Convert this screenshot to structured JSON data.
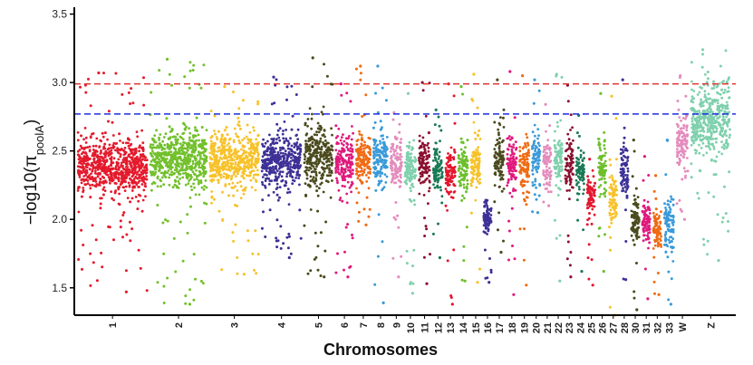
{
  "chart_data": {
    "type": "scatter",
    "subtype": "manhattan",
    "xlabel": "Chromosomes",
    "ylabel": {
      "prefix": "−log10(π",
      "subscript": "poolA",
      "suffix": ")"
    },
    "ylim": [
      1.3,
      3.55
    ],
    "yticks": [
      "1.5",
      "2.0",
      "2.5",
      "3.0",
      "3.5"
    ],
    "thresholds": [
      {
        "value": 2.99,
        "color": "#e03131",
        "style": "dashed"
      },
      {
        "value": 2.77,
        "color": "#1c2fd9",
        "style": "dashed"
      }
    ],
    "categories": [
      {
        "label": "1",
        "color": "#e41a2c",
        "base": 2.38,
        "band": 0.17,
        "top": 3.07,
        "low": 1.47
      },
      {
        "label": "2",
        "color": "#72c02c",
        "base": 2.44,
        "band": 0.18,
        "top": 3.17,
        "low": 1.38
      },
      {
        "label": "3",
        "color": "#f7c22a",
        "base": 2.43,
        "band": 0.17,
        "top": 2.97,
        "low": 1.6
      },
      {
        "label": "4",
        "color": "#3d3096",
        "base": 2.42,
        "band": 0.17,
        "top": 3.04,
        "low": 1.72
      },
      {
        "label": "5",
        "color": "#4a4a1e",
        "base": 2.48,
        "band": 0.22,
        "top": 3.18,
        "low": 1.58
      },
      {
        "label": "6",
        "color": "#e0197d",
        "base": 2.42,
        "band": 0.18,
        "top": 2.99,
        "low": 1.58
      },
      {
        "label": "7",
        "color": "#ef6b13",
        "base": 2.43,
        "band": 0.17,
        "top": 3.12,
        "low": 1.96
      },
      {
        "label": "8",
        "color": "#3a9ad9",
        "base": 2.44,
        "band": 0.17,
        "top": 3.12,
        "low": 1.39
      },
      {
        "label": "9",
        "color": "#e48cbd",
        "base": 2.4,
        "band": 0.16,
        "top": 2.78,
        "low": 1.58
      },
      {
        "label": "10",
        "color": "#7fd0ad",
        "base": 2.38,
        "band": 0.16,
        "top": 2.92,
        "low": 1.46
      },
      {
        "label": "11",
        "color": "#8b0f2e",
        "base": 2.4,
        "band": 0.17,
        "top": 3.0,
        "low": 1.53
      },
      {
        "label": "12",
        "color": "#1b7a56",
        "base": 2.36,
        "band": 0.15,
        "top": 2.8,
        "low": 1.72
      },
      {
        "label": "13",
        "color": "#e4162e",
        "base": 2.34,
        "band": 0.16,
        "top": 2.99,
        "low": 1.38
      },
      {
        "label": "14",
        "color": "#6dbf2c",
        "base": 2.38,
        "band": 0.16,
        "top": 2.97,
        "low": 1.55
      },
      {
        "label": "15",
        "color": "#f7c22a",
        "base": 2.4,
        "band": 0.17,
        "top": 3.06,
        "low": 1.54
      },
      {
        "label": "16",
        "color": "#3d3096",
        "base": 2.0,
        "band": 0.12,
        "top": 2.14,
        "low": 1.54
      },
      {
        "label": "17",
        "color": "#4a4a1e",
        "base": 2.45,
        "band": 0.18,
        "top": 3.02,
        "low": 1.76
      },
      {
        "label": "18",
        "color": "#e0197d",
        "base": 2.4,
        "band": 0.18,
        "top": 3.08,
        "low": 1.45
      },
      {
        "label": "19",
        "color": "#ef6b13",
        "base": 2.38,
        "band": 0.17,
        "top": 3.05,
        "low": 1.52
      },
      {
        "label": "20",
        "color": "#3a9ad9",
        "base": 2.45,
        "band": 0.17,
        "top": 3.02,
        "low": 2.05
      },
      {
        "label": "21",
        "color": "#e48cbd",
        "base": 2.42,
        "band": 0.16,
        "top": 2.84,
        "low": 2.1
      },
      {
        "label": "22",
        "color": "#7fd0ad",
        "base": 2.45,
        "band": 0.18,
        "top": 3.06,
        "low": 1.55
      },
      {
        "label": "23",
        "color": "#8b0f2e",
        "base": 2.4,
        "band": 0.18,
        "top": 2.98,
        "low": 1.58
      },
      {
        "label": "24",
        "color": "#1b7a56",
        "base": 2.35,
        "band": 0.14,
        "top": 2.76,
        "low": 1.62
      },
      {
        "label": "25",
        "color": "#e4162e",
        "base": 2.18,
        "band": 0.13,
        "top": 2.44,
        "low": 1.52
      },
      {
        "label": "26",
        "color": "#6dbf2c",
        "base": 2.38,
        "band": 0.17,
        "top": 2.92,
        "low": 1.62
      },
      {
        "label": "27",
        "color": "#f7c22a",
        "base": 2.15,
        "band": 0.16,
        "top": 2.9,
        "low": 1.3
      },
      {
        "label": "28",
        "color": "#3d3096",
        "base": 2.35,
        "band": 0.17,
        "top": 3.02,
        "low": 1.56
      },
      {
        "label": "30",
        "color": "#4a4a1e",
        "base": 2.0,
        "band": 0.14,
        "top": 2.58,
        "low": 1.34
      },
      {
        "label": "31",
        "color": "#e0197d",
        "base": 2.0,
        "band": 0.13,
        "top": 2.46,
        "low": 1.42
      },
      {
        "label": "32",
        "color": "#ef6b13",
        "base": 1.92,
        "band": 0.12,
        "top": 2.32,
        "low": 1.45
      },
      {
        "label": "33",
        "color": "#3a9ad9",
        "base": 1.95,
        "band": 0.16,
        "top": 2.58,
        "low": 1.38
      },
      {
        "label": "W",
        "color": "#e48cbd",
        "base": 2.55,
        "band": 0.18,
        "top": 3.05,
        "low": 2.0
      },
      {
        "label": "Z",
        "color": "#7fd0ad",
        "base": 2.72,
        "band": 0.22,
        "top": 3.24,
        "low": 1.7
      }
    ]
  }
}
